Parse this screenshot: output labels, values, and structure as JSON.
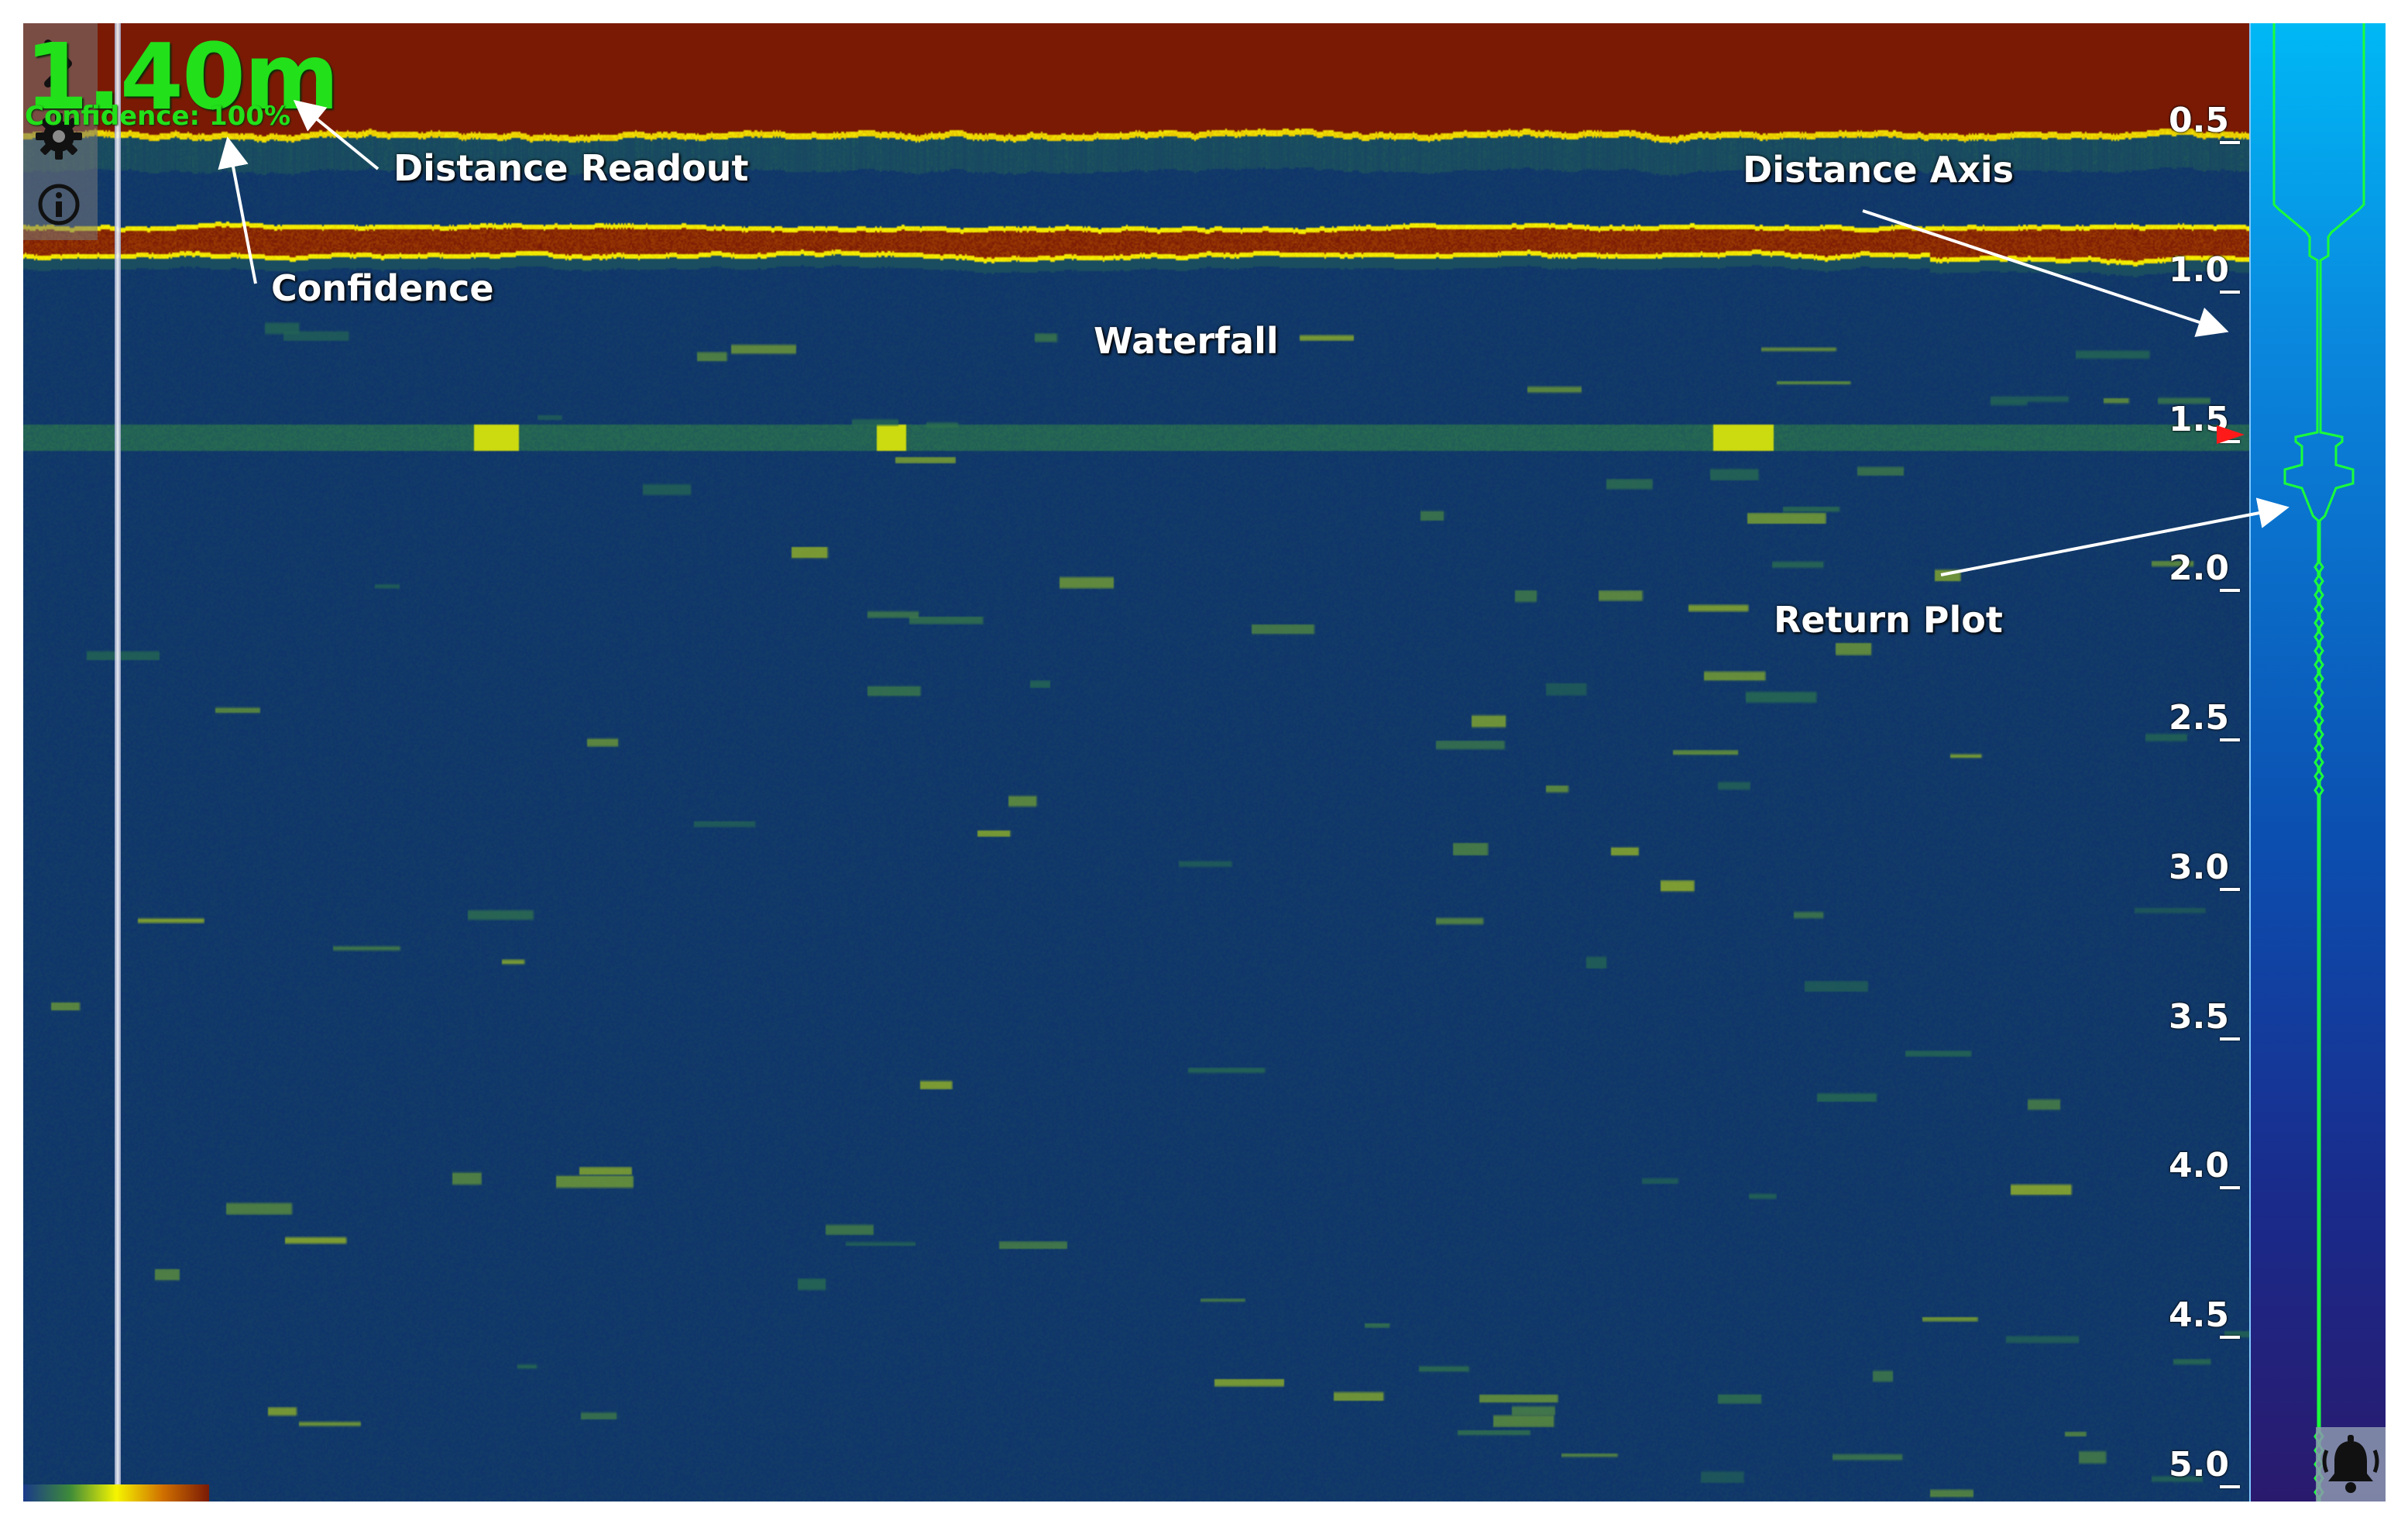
{
  "readout": {
    "distance": "1.40m",
    "confidence": "Confidence: 100%"
  },
  "axis": {
    "unit": "m",
    "ticks": [
      "0.5",
      "1.0",
      "1.5",
      "2.0",
      "2.5",
      "3.0",
      "3.5",
      "4.0",
      "4.5",
      "5.0"
    ],
    "range": [
      0.1,
      5.05
    ],
    "current_distance": 1.4
  },
  "annotations": {
    "distance_readout": "Distance Readout",
    "confidence": "Confidence",
    "waterfall": "Waterfall",
    "distance_axis": "Distance Axis",
    "return_plot": "Return Plot"
  },
  "icons": {
    "expand": "chevron-right-icon",
    "settings": "gear-icon",
    "info": "info-icon",
    "alarm": "bell-icon"
  },
  "colors": {
    "readout_green": "#22e01a",
    "water_blue": "#0d2f6e",
    "strong_return": "#7a1a05",
    "echo_yellow": "#f5f500",
    "plot_line": "#1aff3a",
    "marker_red": "#ff1a1a"
  },
  "colormap": [
    "#1a3a8a",
    "#3d8a3a",
    "#f5f500",
    "#d07000",
    "#7a1a05"
  ]
}
